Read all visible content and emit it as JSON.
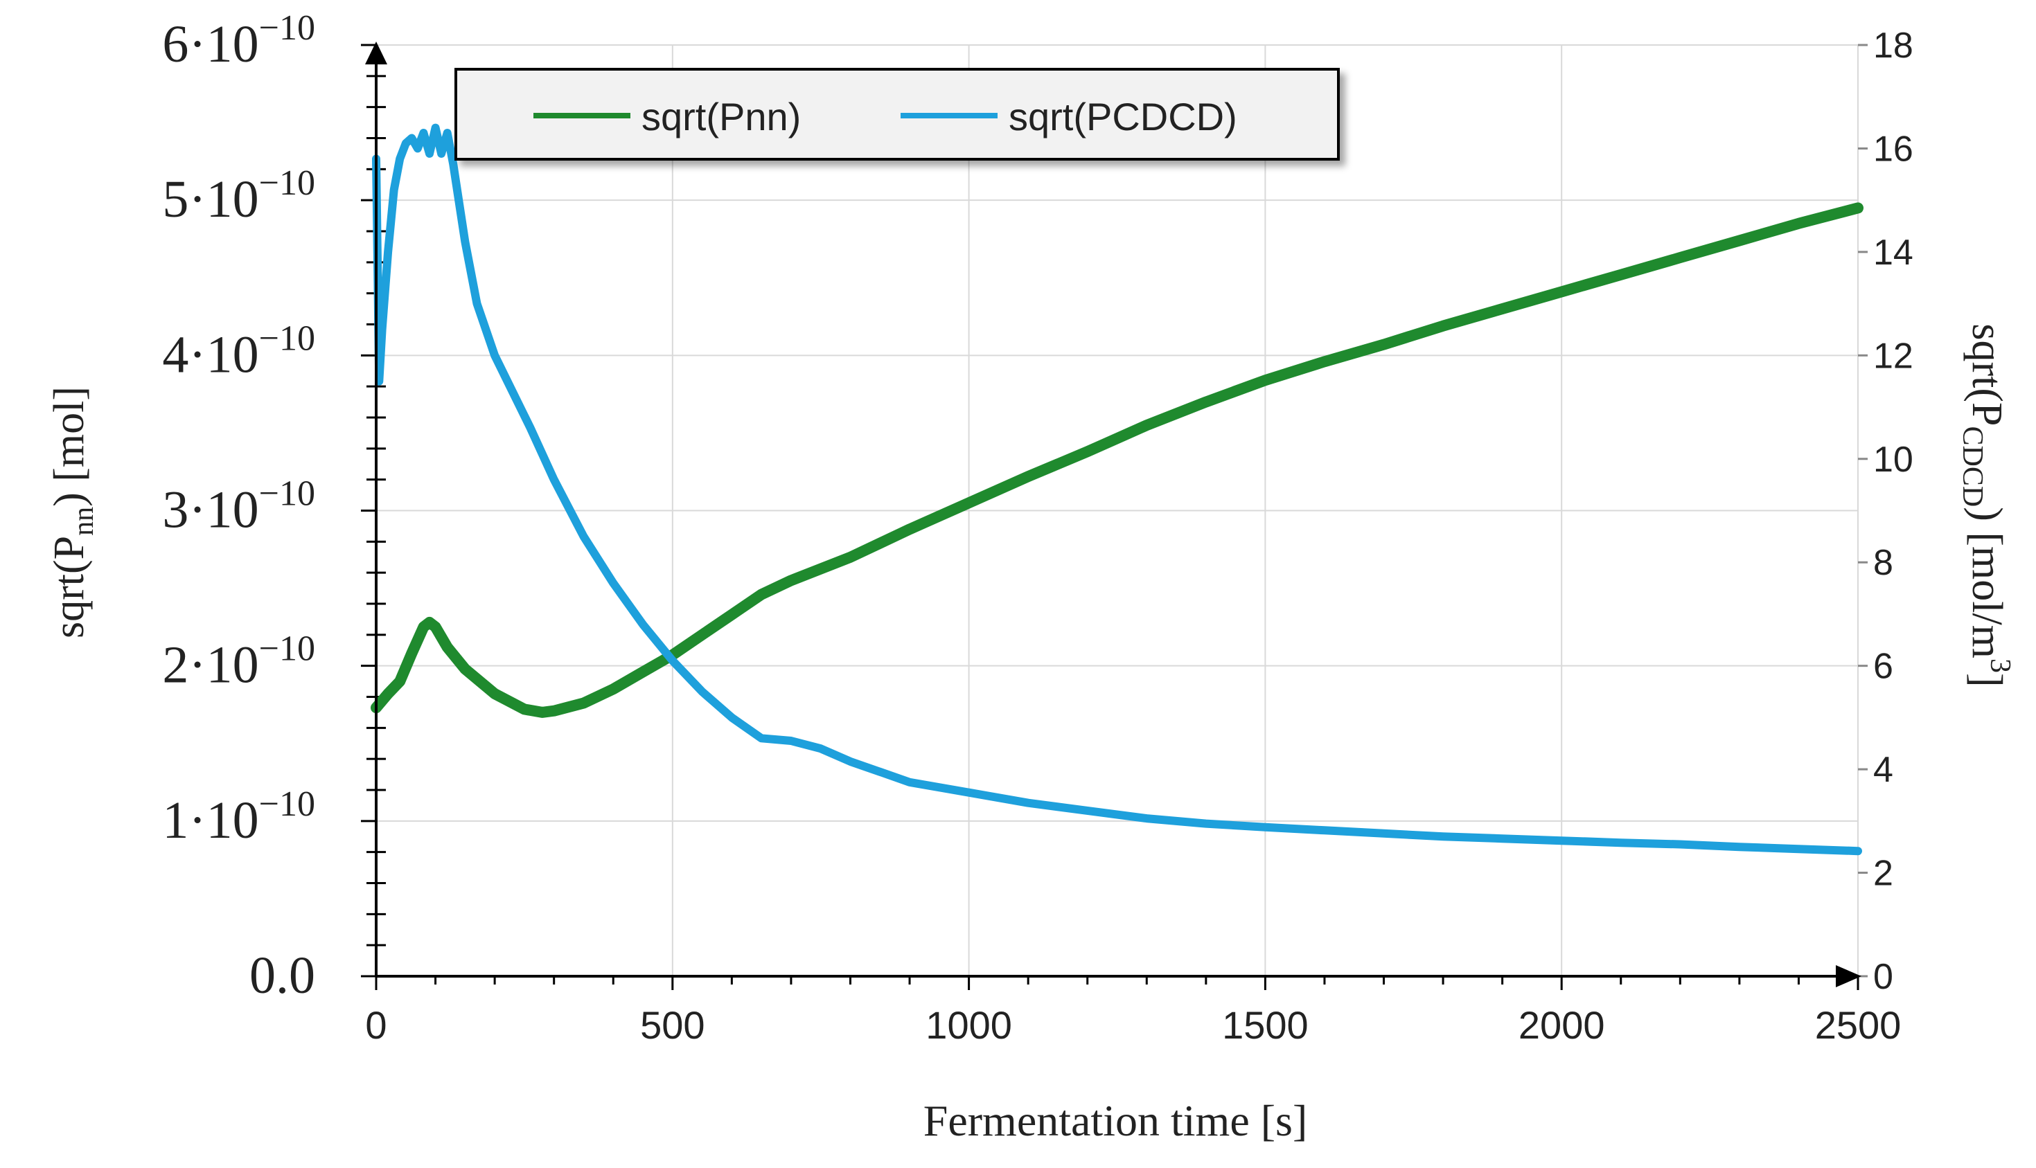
{
  "chart_data": {
    "type": "line",
    "title": "",
    "xlabel": "Fermentation time [s]",
    "ylabel_left": "sqrt(Pnn) [mol]",
    "ylabel_right": "sqrt(PCDCD) [mol/m3]",
    "ylabel_left_parts": {
      "pre": "sqrt(P",
      "sub": "nn",
      "post": ") [mol]"
    },
    "ylabel_right_parts": {
      "pre": "sqrt(P",
      "sub": "CDCD",
      "post": ") [mol/m",
      "sup": "3",
      "end": "]"
    },
    "xlim": [
      0,
      2500
    ],
    "ylim_left": [
      0,
      6e-10
    ],
    "ylim_right": [
      0,
      18
    ],
    "x_ticks": [
      "0",
      "500",
      "1000",
      "1500",
      "2000",
      "2500"
    ],
    "x_tick_values": [
      0,
      500,
      1000,
      1500,
      2000,
      2500
    ],
    "y_left_ticks": [
      {
        "value": 0,
        "mant": "0.0",
        "exp": ""
      },
      {
        "value": 1e-10,
        "mant": "1·10",
        "exp": "−10"
      },
      {
        "value": 2e-10,
        "mant": "2·10",
        "exp": "−10"
      },
      {
        "value": 3e-10,
        "mant": "3·10",
        "exp": "−10"
      },
      {
        "value": 4e-10,
        "mant": "4·10",
        "exp": "−10"
      },
      {
        "value": 5e-10,
        "mant": "5·10",
        "exp": "−10"
      },
      {
        "value": 6e-10,
        "mant": "6·10",
        "exp": "−10"
      }
    ],
    "y_right_ticks": [
      "0",
      "2",
      "4",
      "6",
      "8",
      "10",
      "12",
      "14",
      "16",
      "18"
    ],
    "y_right_tick_values": [
      0,
      2,
      4,
      6,
      8,
      10,
      12,
      14,
      16,
      18
    ],
    "grid": true,
    "legend_position": "top-left",
    "series": [
      {
        "name": "sqrt(Pnn)",
        "axis": "left",
        "color": "#1f8a2e",
        "x": [
          0,
          20,
          40,
          60,
          80,
          90,
          100,
          120,
          150,
          200,
          250,
          280,
          300,
          350,
          400,
          450,
          500,
          550,
          600,
          650,
          700,
          800,
          900,
          1000,
          1100,
          1200,
          1300,
          1400,
          1500,
          1600,
          1700,
          1800,
          1900,
          2000,
          2100,
          2200,
          2300,
          2400,
          2500
        ],
        "values": [
          1.73e-10,
          1.82e-10,
          1.9e-10,
          2.08e-10,
          2.25e-10,
          2.28e-10,
          2.25e-10,
          2.12e-10,
          1.98e-10,
          1.82e-10,
          1.72e-10,
          1.7e-10,
          1.71e-10,
          1.76e-10,
          1.85e-10,
          1.96e-10,
          2.07e-10,
          2.2e-10,
          2.33e-10,
          2.46e-10,
          2.55e-10,
          2.7e-10,
          2.88e-10,
          3.05e-10,
          3.22e-10,
          3.38e-10,
          3.55e-10,
          3.7e-10,
          3.84e-10,
          3.96e-10,
          4.07e-10,
          4.19e-10,
          4.3e-10,
          4.41e-10,
          4.52e-10,
          4.63e-10,
          4.74e-10,
          4.85e-10,
          4.95e-10
        ]
      },
      {
        "name": "sqrt(PCDCD)",
        "axis": "right",
        "color": "#1ea0dc",
        "x": [
          0,
          5,
          10,
          20,
          30,
          40,
          50,
          60,
          70,
          80,
          90,
          100,
          110,
          120,
          130,
          150,
          170,
          200,
          230,
          260,
          300,
          350,
          400,
          450,
          500,
          550,
          600,
          650,
          700,
          750,
          800,
          850,
          900,
          1000,
          1100,
          1200,
          1300,
          1400,
          1500,
          1600,
          1700,
          1800,
          1900,
          2000,
          2100,
          2200,
          2300,
          2400,
          2500
        ],
        "values": [
          15.8,
          11.5,
          12.5,
          14.0,
          15.2,
          15.8,
          16.1,
          16.2,
          16.0,
          16.3,
          15.9,
          16.4,
          15.9,
          16.3,
          15.7,
          14.2,
          13.0,
          12.0,
          11.3,
          10.6,
          9.6,
          8.5,
          7.6,
          6.8,
          6.1,
          5.5,
          5.0,
          4.6,
          4.55,
          4.4,
          4.15,
          3.95,
          3.75,
          3.55,
          3.35,
          3.2,
          3.05,
          2.95,
          2.88,
          2.82,
          2.76,
          2.7,
          2.66,
          2.62,
          2.58,
          2.55,
          2.5,
          2.46,
          2.42
        ]
      }
    ]
  }
}
